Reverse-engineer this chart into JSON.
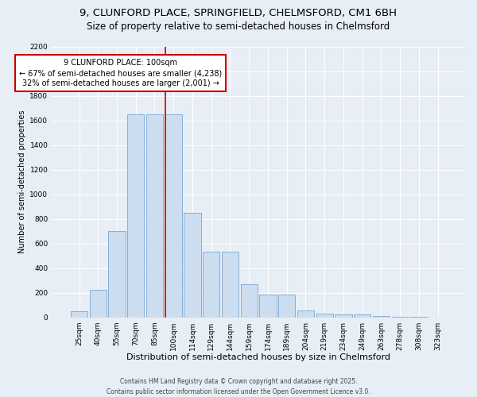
{
  "title1": "9, CLUNFORD PLACE, SPRINGFIELD, CHELMSFORD, CM1 6BH",
  "title2": "Size of property relative to semi-detached houses in Chelmsford",
  "xlabel": "Distribution of semi-detached houses by size in Chelmsford",
  "ylabel": "Number of semi-detached properties",
  "categories": [
    "25sqm",
    "40sqm",
    "55sqm",
    "70sqm",
    "85sqm",
    "100sqm",
    "114sqm",
    "129sqm",
    "144sqm",
    "159sqm",
    "174sqm",
    "189sqm",
    "204sqm",
    "219sqm",
    "234sqm",
    "249sqm",
    "263sqm",
    "278sqm",
    "308sqm",
    "323sqm"
  ],
  "values": [
    50,
    220,
    700,
    1650,
    1650,
    1650,
    850,
    530,
    530,
    270,
    185,
    185,
    55,
    30,
    25,
    20,
    10,
    5,
    1,
    0
  ],
  "bar_color": "#ccddf0",
  "bar_edge_color": "#6699cc",
  "red_line_index": 5,
  "annotation_line1": "9 CLUNFORD PLACE: 100sqm",
  "annotation_line2": "← 67% of semi-detached houses are smaller (4,238)",
  "annotation_line3": "32% of semi-detached houses are larger (2,001) →",
  "annotation_box_color": "#ffffff",
  "annotation_box_edge": "#cc0000",
  "red_line_color": "#cc0000",
  "ylim_max": 2200,
  "yticks": [
    0,
    200,
    400,
    600,
    800,
    1000,
    1200,
    1400,
    1600,
    1800,
    2000,
    2200
  ],
  "background_color": "#e8eef5",
  "footer_line1": "Contains HM Land Registry data © Crown copyright and database right 2025.",
  "footer_line2": "Contains public sector information licensed under the Open Government Licence v3.0.",
  "title1_fontsize": 9.5,
  "title2_fontsize": 8.5,
  "xlabel_fontsize": 8,
  "ylabel_fontsize": 7,
  "tick_fontsize": 6.5,
  "annotation_fontsize": 7,
  "footer_fontsize": 5.5
}
